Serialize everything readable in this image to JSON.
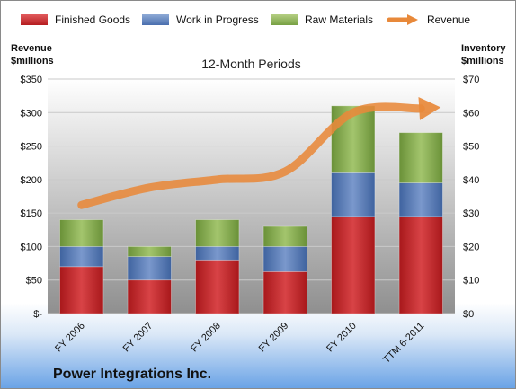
{
  "legend": {
    "items": [
      {
        "label": "Finished Goods",
        "color": "#c0282b"
      },
      {
        "label": "Work in Progress",
        "color": "#4f76b3"
      },
      {
        "label": "Raw Materials",
        "color": "#7fa348"
      },
      {
        "label": "Revenue",
        "color": "#e8893a"
      }
    ]
  },
  "axis_titles": {
    "left_line1": "Revenue",
    "left_line2": "$millions",
    "right_line1": "Inventory",
    "right_line2": "$millions"
  },
  "footer": {
    "company": "Power Integrations Inc."
  },
  "chart_data": {
    "type": "bar",
    "stacked": true,
    "title": "12-Month Periods",
    "categories": [
      "FY 2006",
      "FY 2007",
      "FY 2008",
      "FY 2009",
      "FY 2010",
      "TTM 6-2011"
    ],
    "series": [
      {
        "name": "Finished Goods",
        "axis": "right",
        "color": "#c0282b",
        "values": [
          14,
          10,
          16,
          12.5,
          29,
          29
        ]
      },
      {
        "name": "Work in Progress",
        "axis": "right",
        "color": "#4f76b3",
        "values": [
          6,
          7,
          4,
          7.5,
          13,
          10
        ]
      },
      {
        "name": "Raw Materials",
        "axis": "right",
        "color": "#7fa348",
        "values": [
          8,
          3,
          8,
          6,
          20,
          15
        ]
      },
      {
        "name": "Revenue",
        "axis": "left",
        "type": "line",
        "color": "#e8893a",
        "values": [
          162,
          188,
          200,
          212,
          300,
          306
        ]
      }
    ],
    "left_axis": {
      "ylim": [
        0,
        350
      ],
      "ticks": [
        "$-",
        "$50",
        "$100",
        "$150",
        "$200",
        "$250",
        "$300",
        "$350"
      ]
    },
    "right_axis": {
      "ylim": [
        0,
        70
      ],
      "ticks": [
        "$0",
        "$10",
        "$20",
        "$30",
        "$40",
        "$50",
        "$60",
        "$70"
      ]
    },
    "grid": true
  }
}
